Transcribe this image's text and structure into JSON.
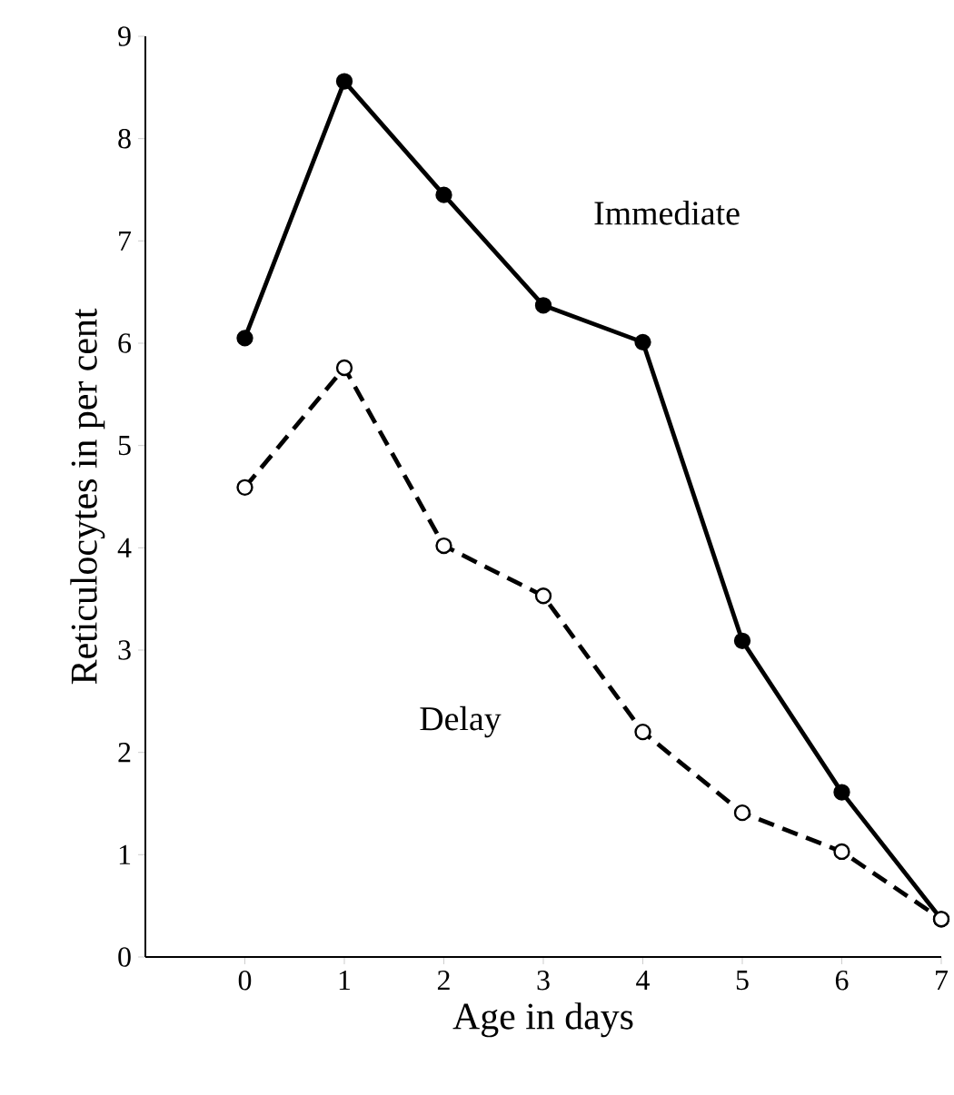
{
  "chart_data": {
    "type": "line",
    "xlabel": "Age in days",
    "ylabel": "Reticulocytes in per cent",
    "x": [
      0,
      1,
      2,
      3,
      4,
      5,
      6,
      7
    ],
    "series": [
      {
        "name": "Immediate",
        "color": "#000000",
        "line_style": "solid",
        "values": [
          6.05,
          8.56,
          7.45,
          6.37,
          6.01,
          3.09,
          1.61,
          0.37
        ]
      },
      {
        "name": "Delay",
        "color": "#000000",
        "line_style": "dashed",
        "values": [
          4.59,
          5.76,
          4.02,
          3.53,
          2.2,
          1.41,
          1.03,
          0.37
        ]
      }
    ],
    "xlim": [
      -1,
      7
    ],
    "ylim": [
      0,
      9
    ],
    "xticks": [
      0,
      1,
      2,
      3,
      4,
      5,
      6,
      7
    ],
    "yticks": [
      0,
      1,
      2,
      3,
      4,
      5,
      6,
      7,
      8,
      9
    ],
    "marker": "circle",
    "legend": false,
    "grid": false
  }
}
